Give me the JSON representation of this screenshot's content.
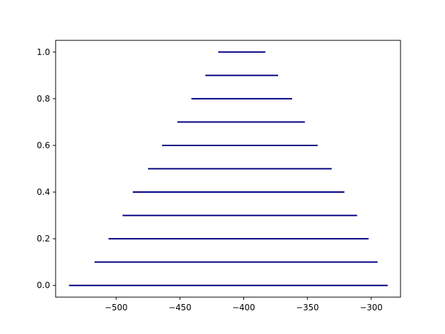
{
  "chart_data": {
    "type": "hlines",
    "title": "",
    "xlabel": "",
    "ylabel": "",
    "xlim": [
      -547.5,
      -277
    ],
    "ylim": [
      -0.05,
      1.05
    ],
    "xticks": [
      -500,
      -450,
      -400,
      -350,
      -300
    ],
    "xtick_labels": [
      "−500",
      "−450",
      "−400",
      "−350",
      "−300"
    ],
    "yticks": [
      0.0,
      0.2,
      0.4,
      0.6,
      0.8,
      1.0
    ],
    "ytick_labels": [
      "0.0",
      "0.2",
      "0.4",
      "0.6",
      "0.8",
      "1.0"
    ],
    "grid": false,
    "legend": "none",
    "line_color": "#000080",
    "segments": [
      {
        "y": 0.0,
        "xmin": -537,
        "xmax": -287
      },
      {
        "y": 0.1,
        "xmin": -517,
        "xmax": -295
      },
      {
        "y": 0.2,
        "xmin": -506,
        "xmax": -302
      },
      {
        "y": 0.3,
        "xmin": -495,
        "xmax": -311
      },
      {
        "y": 0.4,
        "xmin": -487,
        "xmax": -321
      },
      {
        "y": 0.5,
        "xmin": -475,
        "xmax": -331
      },
      {
        "y": 0.6,
        "xmin": -464,
        "xmax": -342
      },
      {
        "y": 0.7,
        "xmin": -452,
        "xmax": -352
      },
      {
        "y": 0.8,
        "xmin": -441,
        "xmax": -362
      },
      {
        "y": 0.9,
        "xmin": -430,
        "xmax": -373
      },
      {
        "y": 1.0,
        "xmin": -420,
        "xmax": -383
      }
    ]
  }
}
